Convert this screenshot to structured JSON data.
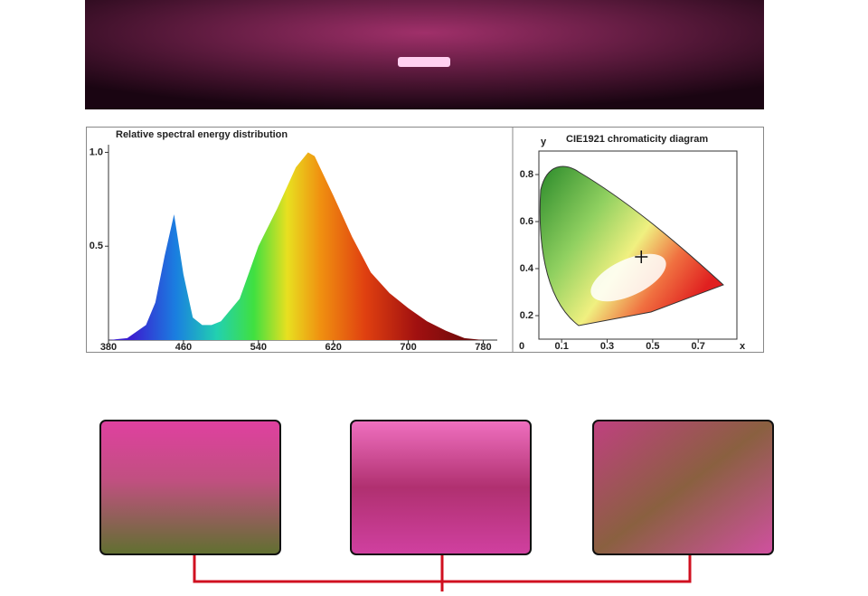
{
  "chart_data": [
    {
      "type": "area",
      "title": "Relative spectral energy distribution",
      "x": [
        380,
        400,
        420,
        430,
        440,
        450,
        460,
        470,
        480,
        490,
        500,
        520,
        540,
        560,
        580,
        593,
        600,
        620,
        640,
        660,
        680,
        700,
        720,
        740,
        760,
        780
      ],
      "values": [
        0,
        0.01,
        0.08,
        0.2,
        0.45,
        0.67,
        0.35,
        0.12,
        0.08,
        0.08,
        0.1,
        0.22,
        0.5,
        0.7,
        0.92,
        1,
        0.98,
        0.77,
        0.55,
        0.36,
        0.25,
        0.17,
        0.1,
        0.05,
        0.01,
        0
      ],
      "xlim": [
        380,
        795
      ],
      "ylim": [
        0,
        1.06
      ],
      "xticks": [
        380,
        460,
        540,
        620,
        700,
        780
      ],
      "yticks": [
        {
          "value": 1,
          "label": "1.0"
        },
        0.5
      ]
    },
    {
      "type": "scatter",
      "title": "CIE1921 chromaticity diagram",
      "x_label": "x",
      "y_label": "y",
      "origin_label": "0",
      "x": [
        0.45
      ],
      "values": [
        0.45
      ],
      "xlim": [
        0,
        0.87
      ],
      "ylim": [
        0.1,
        0.9
      ],
      "xticks": [
        0.1,
        0.3,
        0.5,
        0.7
      ],
      "yticks": [
        0.2,
        0.4,
        0.6,
        0.8
      ]
    }
  ]
}
